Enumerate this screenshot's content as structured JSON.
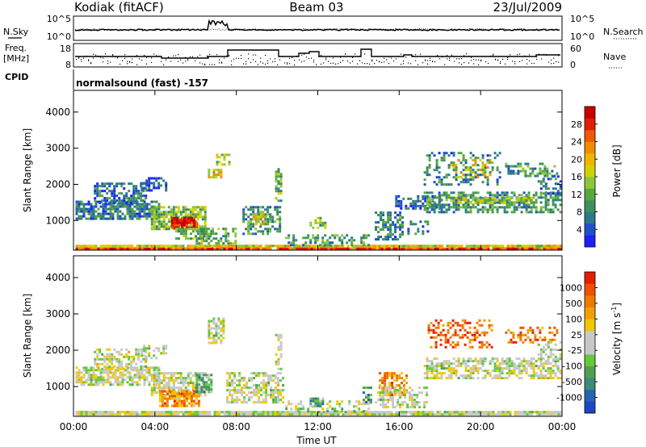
{
  "header": {
    "station": "Kodiak (fitACF)",
    "beam": "Beam 03",
    "date": "23/Jul/2009"
  },
  "labels": {
    "nsky": "N.Sky",
    "nsearch": "N.Search",
    "freq_line1": "Freq.",
    "freq_line2": "[MHz]",
    "nave": "Nave",
    "cpid": "CPID",
    "cpid_value": "normalsound (fast) -157",
    "x_title": "Time UT"
  },
  "noise_panel": {
    "left_ticks": [
      "10^5",
      "10^0"
    ],
    "right_ticks": [
      "10^5",
      "10^0"
    ]
  },
  "freq_panel": {
    "left_ticks": [
      "18",
      "8"
    ],
    "right_ticks": [
      "60",
      "0"
    ]
  },
  "x_ticks": [
    "00:00",
    "04:00",
    "08:00",
    "12:00",
    "16:00",
    "20:00",
    "00:00"
  ],
  "chart_data": [
    {
      "type": "heatmap",
      "name": "power",
      "ylabel": "Slant Range [km]",
      "xlabel": "Time UT",
      "xlim": [
        0,
        24
      ],
      "ylim": [
        180,
        4600
      ],
      "y_ticks": [
        1000,
        2000,
        3000,
        4000
      ],
      "colorbar_label": "Power [dB]",
      "colorbar_ticks": [
        4,
        8,
        12,
        16,
        20,
        24,
        28
      ],
      "colorbar_colors": [
        "#1e1eff",
        "#1e50c8",
        "#2a7a8a",
        "#3f8f5a",
        "#58a83c",
        "#8cc63c",
        "#d2d200",
        "#f0b400",
        "#f08c00",
        "#f05a00",
        "#e01e00",
        "#c80000"
      ],
      "regions": [
        {
          "t0": 0.1,
          "t1": 24,
          "r0": 200,
          "r1": 330,
          "level": 0.55,
          "density": 0.95
        },
        {
          "t0": 0.1,
          "t1": 24,
          "r0": 200,
          "r1": 250,
          "level": 0.85,
          "density": 0.9
        },
        {
          "t0": 0.1,
          "t1": 4.2,
          "r0": 1050,
          "r1": 1550,
          "level": 0.22,
          "density": 0.75
        },
        {
          "t0": 1.0,
          "t1": 3.6,
          "r0": 1500,
          "r1": 2050,
          "level": 0.2,
          "density": 0.6
        },
        {
          "t0": 3.3,
          "t1": 4.6,
          "r0": 1850,
          "r1": 2200,
          "level": 0.12,
          "density": 0.5
        },
        {
          "t0": 3.8,
          "t1": 6.5,
          "r0": 750,
          "r1": 1400,
          "level": 0.4,
          "density": 0.8
        },
        {
          "t0": 4.8,
          "t1": 6.0,
          "r0": 800,
          "r1": 1100,
          "level": 0.92,
          "density": 0.9
        },
        {
          "t0": 5.0,
          "t1": 6.8,
          "r0": 500,
          "r1": 800,
          "level": 0.35,
          "density": 0.6
        },
        {
          "t0": 6.6,
          "t1": 7.3,
          "r0": 2200,
          "r1": 2500,
          "level": 0.55,
          "density": 0.7
        },
        {
          "t0": 7.0,
          "t1": 7.6,
          "r0": 2550,
          "r1": 2850,
          "level": 0.45,
          "density": 0.6
        },
        {
          "t0": 6.0,
          "t1": 8.0,
          "r0": 350,
          "r1": 800,
          "level": 0.35,
          "density": 0.5
        },
        {
          "t0": 8.3,
          "t1": 10.2,
          "r0": 650,
          "r1": 1400,
          "level": 0.3,
          "density": 0.55
        },
        {
          "t0": 8.8,
          "t1": 9.5,
          "r0": 900,
          "r1": 1200,
          "level": 0.55,
          "density": 0.7
        },
        {
          "t0": 9.9,
          "t1": 10.15,
          "r0": 1500,
          "r1": 2450,
          "level": 0.35,
          "density": 0.6
        },
        {
          "t0": 10.4,
          "t1": 14.5,
          "r0": 330,
          "r1": 620,
          "level": 0.3,
          "density": 0.45
        },
        {
          "t0": 11.6,
          "t1": 12.4,
          "r0": 800,
          "r1": 1100,
          "level": 0.4,
          "density": 0.35
        },
        {
          "t0": 14.8,
          "t1": 16.2,
          "r0": 450,
          "r1": 1250,
          "level": 0.25,
          "density": 0.55
        },
        {
          "t0": 16.4,
          "t1": 17.4,
          "r0": 600,
          "r1": 1000,
          "level": 0.25,
          "density": 0.5
        },
        {
          "t0": 15.8,
          "t1": 18.0,
          "r0": 1300,
          "r1": 1700,
          "level": 0.18,
          "density": 0.5
        },
        {
          "t0": 17.2,
          "t1": 23.9,
          "r0": 1250,
          "r1": 1800,
          "level": 0.3,
          "density": 0.6
        },
        {
          "t0": 18.5,
          "t1": 22.5,
          "r0": 1450,
          "r1": 1650,
          "level": 0.45,
          "density": 0.7
        },
        {
          "t0": 17.2,
          "t1": 21.0,
          "r0": 2000,
          "r1": 2900,
          "level": 0.25,
          "density": 0.3
        },
        {
          "t0": 18.5,
          "t1": 20.5,
          "r0": 2200,
          "r1": 2700,
          "level": 0.55,
          "density": 0.35
        },
        {
          "t0": 21.2,
          "t1": 23.8,
          "r0": 2200,
          "r1": 2600,
          "level": 0.3,
          "density": 0.35
        },
        {
          "t0": 22.8,
          "t1": 23.9,
          "r0": 1750,
          "r1": 2250,
          "level": 0.2,
          "density": 0.45
        }
      ]
    },
    {
      "type": "heatmap",
      "name": "velocity",
      "ylabel": "Slant Range [km]",
      "xlabel": "Time UT",
      "xlim": [
        0,
        24
      ],
      "ylim": [
        180,
        4600
      ],
      "y_ticks": [
        1000,
        2000,
        3000,
        4000
      ],
      "colorbar_label": "Velocity [m s-1]",
      "colorbar_ticks": [
        1000,
        500,
        100,
        25,
        -25,
        -100,
        -500,
        -1000
      ],
      "colorbar_colors": [
        "#1e46c8",
        "#2864b4",
        "#3c8c78",
        "#50a050",
        "#64c83c",
        "#c8c8c8",
        "#c8c8c8",
        "#f0c800",
        "#f0a000",
        "#f07800",
        "#f05000",
        "#e61e00"
      ],
      "regions": [
        {
          "t0": 0.1,
          "t1": 24,
          "r0": 200,
          "r1": 330,
          "level": 0.5,
          "density": 0.95
        },
        {
          "t0": 0.1,
          "t1": 4.2,
          "r0": 1050,
          "r1": 1550,
          "level": 0.5,
          "density": 0.7
        },
        {
          "t0": 1.0,
          "t1": 3.6,
          "r0": 1500,
          "r1": 2050,
          "level": 0.5,
          "density": 0.55
        },
        {
          "t0": 3.3,
          "t1": 4.6,
          "r0": 1800,
          "r1": 2150,
          "level": 0.5,
          "density": 0.45
        },
        {
          "t0": 3.8,
          "t1": 6.5,
          "r0": 800,
          "r1": 1400,
          "level": 0.5,
          "density": 0.7
        },
        {
          "t0": 4.2,
          "t1": 6.2,
          "r0": 500,
          "r1": 900,
          "level": 0.75,
          "density": 0.8
        },
        {
          "t0": 6.0,
          "t1": 6.8,
          "r0": 850,
          "r1": 1350,
          "level": 0.3,
          "density": 0.8
        },
        {
          "t0": 6.6,
          "t1": 7.4,
          "r0": 2200,
          "r1": 2900,
          "level": 0.5,
          "density": 0.6
        },
        {
          "t0": 7.5,
          "t1": 10.3,
          "r0": 550,
          "r1": 1400,
          "level": 0.5,
          "density": 0.6
        },
        {
          "t0": 9.9,
          "t1": 10.15,
          "r0": 1500,
          "r1": 2450,
          "level": 0.5,
          "density": 0.55
        },
        {
          "t0": 10.4,
          "t1": 14.5,
          "r0": 330,
          "r1": 620,
          "level": 0.45,
          "density": 0.4
        },
        {
          "t0": 11.6,
          "t1": 12.3,
          "r0": 450,
          "r1": 700,
          "level": 0.3,
          "density": 0.6
        },
        {
          "t0": 14.2,
          "t1": 14.6,
          "r0": 600,
          "r1": 1000,
          "level": 0.3,
          "density": 0.6
        },
        {
          "t0": 15.0,
          "t1": 16.4,
          "r0": 800,
          "r1": 1400,
          "level": 0.75,
          "density": 0.7
        },
        {
          "t0": 14.8,
          "t1": 17.4,
          "r0": 450,
          "r1": 1000,
          "level": 0.5,
          "density": 0.45
        },
        {
          "t0": 17.2,
          "t1": 23.9,
          "r0": 1250,
          "r1": 1800,
          "level": 0.5,
          "density": 0.6
        },
        {
          "t0": 17.4,
          "t1": 20.6,
          "r0": 2100,
          "r1": 2850,
          "level": 0.85,
          "density": 0.35
        },
        {
          "t0": 21.2,
          "t1": 23.8,
          "r0": 2250,
          "r1": 2650,
          "level": 0.8,
          "density": 0.35
        },
        {
          "t0": 22.8,
          "t1": 23.9,
          "r0": 1750,
          "r1": 2250,
          "level": 0.5,
          "density": 0.4
        }
      ]
    }
  ]
}
